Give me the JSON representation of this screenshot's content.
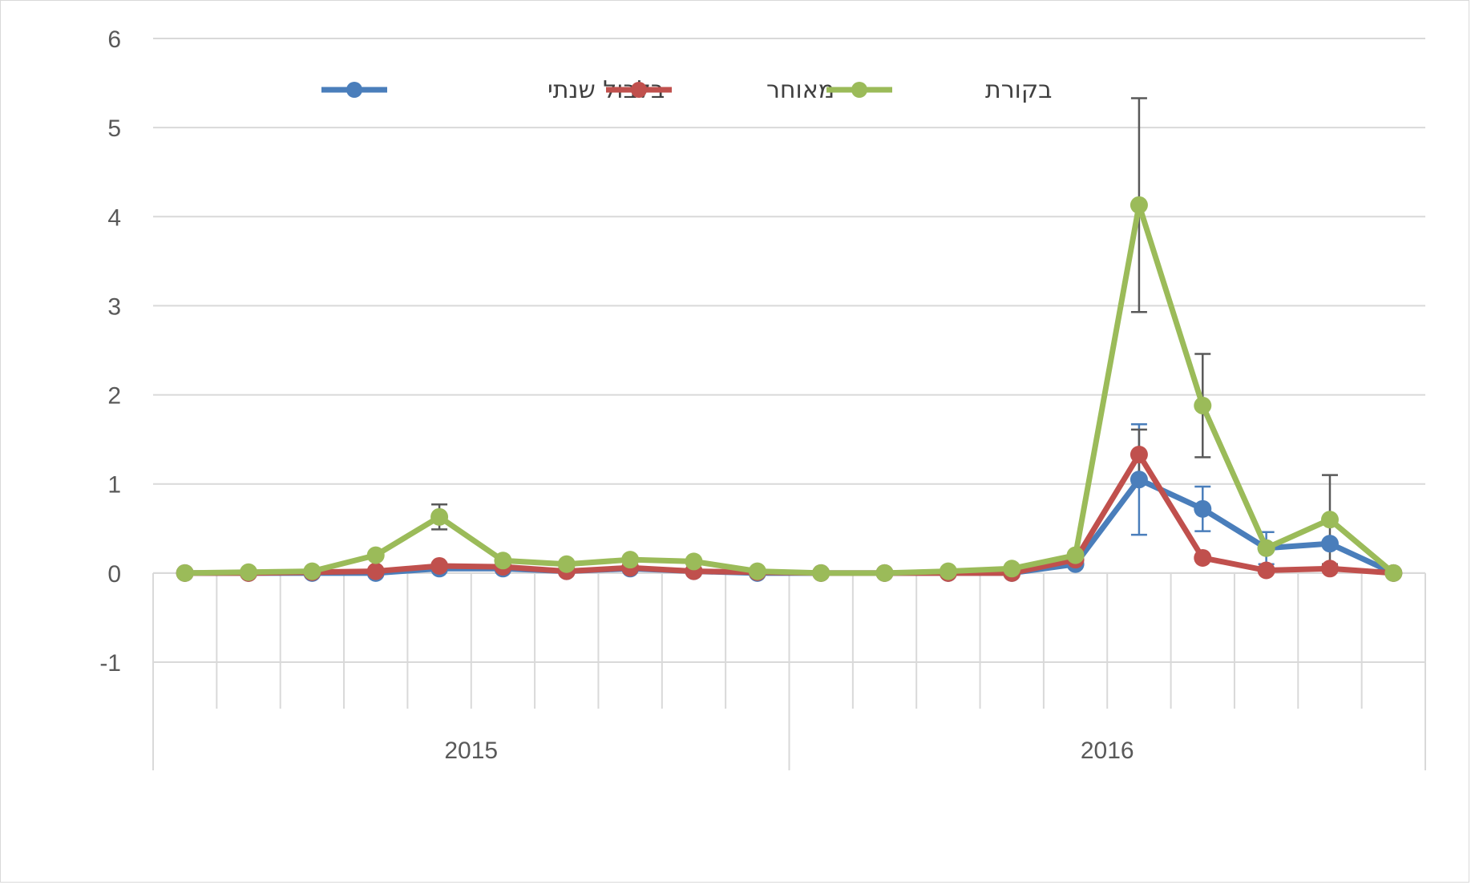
{
  "chart_data": {
    "type": "line",
    "title": "",
    "xlabel": "",
    "ylabel": "",
    "ylim": [
      -1,
      6
    ],
    "yticks": [
      -1,
      0,
      1,
      2,
      3,
      4,
      5,
      6
    ],
    "groups": [
      {
        "label": "2015",
        "count": 10
      },
      {
        "label": "2016",
        "count": 10
      }
    ],
    "x": [
      1,
      2,
      3,
      4,
      5,
      6,
      7,
      8,
      9,
      10,
      11,
      12,
      13,
      14,
      15,
      16,
      17,
      18,
      19,
      20
    ],
    "series": [
      {
        "name": "בלבול שנתי",
        "color": "#4a7ebb",
        "values": [
          0,
          0,
          0,
          0,
          0.05,
          0.05,
          0.02,
          0.05,
          0.02,
          0,
          0,
          0,
          0,
          0,
          0.1,
          1.05,
          0.72,
          0.28,
          0.33,
          0
        ],
        "errors": [
          0,
          0,
          0,
          0,
          0,
          0,
          0,
          0,
          0,
          0,
          0,
          0,
          0,
          0,
          0,
          0.62,
          0.25,
          0.18,
          0,
          0
        ]
      },
      {
        "name": "מאוחר",
        "color": "#c0504d",
        "values": [
          0,
          0,
          0.01,
          0.02,
          0.08,
          0.07,
          0.02,
          0.06,
          0.02,
          0.01,
          0,
          0,
          0,
          0,
          0.15,
          1.33,
          0.17,
          0.03,
          0.05,
          0
        ],
        "errors": [
          0,
          0,
          0,
          0,
          0,
          0,
          0,
          0,
          0,
          0,
          0,
          0,
          0,
          0,
          0,
          0.28,
          0,
          0,
          0,
          0
        ]
      },
      {
        "name": "בקורת",
        "color": "#9bbb59",
        "values": [
          0,
          0.01,
          0.02,
          0.2,
          0.63,
          0.14,
          0.1,
          0.15,
          0.13,
          0.02,
          0,
          0,
          0.02,
          0.05,
          0.2,
          4.13,
          1.88,
          0.28,
          0.6,
          0
        ],
        "errors": [
          0,
          0,
          0,
          0,
          0.14,
          0,
          0,
          0,
          0,
          0,
          0,
          0,
          0,
          0,
          0,
          1.2,
          0.58,
          0,
          0.5,
          0
        ]
      }
    ],
    "legend_position": "top"
  }
}
